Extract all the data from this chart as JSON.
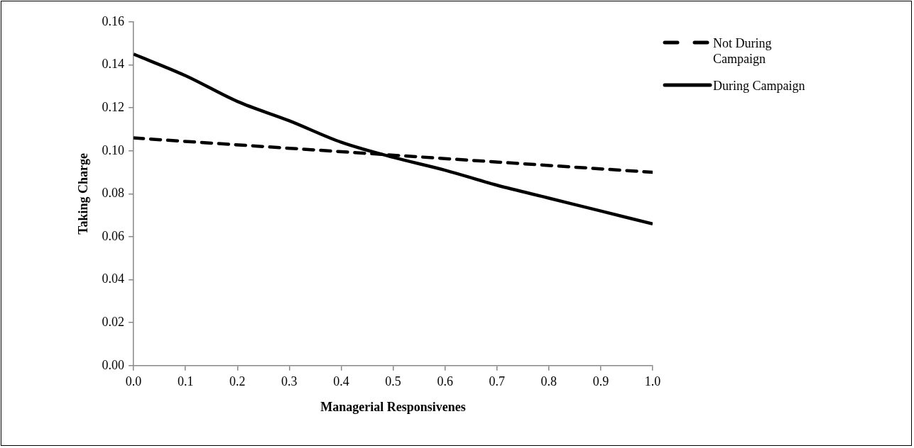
{
  "chart_data": {
    "type": "line",
    "xlabel": "Managerial Responsivenes",
    "ylabel": "Taking Charge",
    "x": [
      0,
      0.1,
      0.2,
      0.3,
      0.4,
      0.5,
      0.6,
      0.7,
      0.8,
      0.9,
      1.0
    ],
    "series": [
      {
        "name": "Not During Campaign",
        "color": "#000000",
        "line_style": "dashed",
        "x": [
          0,
          1.0
        ],
        "values": [
          0.106,
          0.09
        ]
      },
      {
        "name": "During Campaign",
        "color": "#000000",
        "line_style": "solid",
        "values": [
          0.145,
          0.135,
          0.123,
          0.114,
          0.104,
          0.097,
          0.091,
          0.084,
          0.078,
          0.072,
          0.066
        ]
      }
    ],
    "xlim": [
      0,
      1.0
    ],
    "xticks": [
      {
        "value": 0,
        "label": "0.0"
      },
      0.1,
      0.2,
      0.3,
      0.4,
      0.5,
      0.6,
      0.7,
      0.8,
      0.9,
      {
        "value": 1.0,
        "label": "1.0"
      }
    ],
    "ylim": [
      0,
      0.16
    ],
    "yticks": [
      {
        "value": 0,
        "label": "0.00"
      },
      {
        "value": 0.02,
        "label": "0.02"
      },
      {
        "value": 0.04,
        "label": "0.04"
      },
      {
        "value": 0.06,
        "label": "0.06"
      },
      {
        "value": 0.08,
        "label": "0.08"
      },
      {
        "value": 0.1,
        "label": "0.10"
      },
      {
        "value": 0.12,
        "label": "0.12"
      },
      {
        "value": 0.14,
        "label": "0.14"
      },
      {
        "value": 0.16,
        "label": "0.16"
      }
    ],
    "grid": false,
    "legend": "top right",
    "marker": "none"
  }
}
